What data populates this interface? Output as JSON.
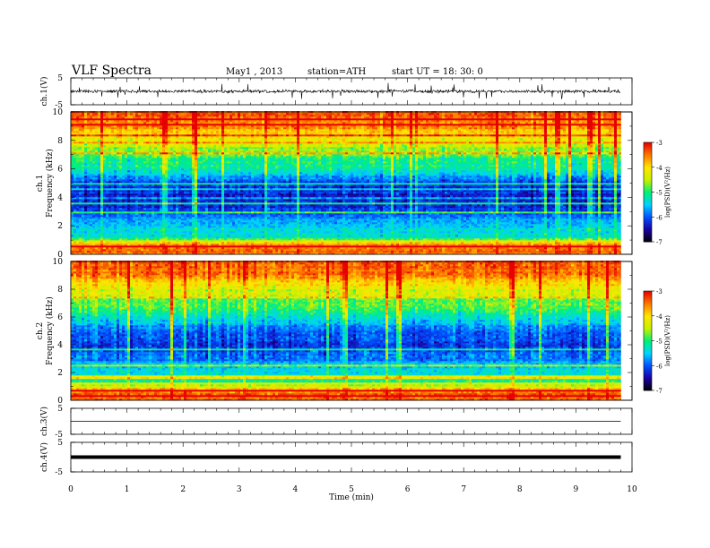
{
  "header": {
    "title": "VLF  Spectra",
    "date": "May1  , 2013",
    "station": "station=ATH",
    "start": "start  UT =   18: 30: 0"
  },
  "chart_data": [
    {
      "type": "line",
      "panel": "ch1-waveform",
      "ylabel": "ch.1(V)",
      "ylim": [
        -5,
        5
      ],
      "yticks": [
        "5",
        "-5"
      ],
      "x_range_min": [
        0,
        9.8
      ],
      "description_values": {
        "baseline": 0,
        "typical_amplitude": 1,
        "spike_amplitude": 3
      }
    },
    {
      "type": "heatmap",
      "panel": "ch1-spectrogram",
      "ylabel_top": "ch.1",
      "ylabel": "Frequency  (kHz)",
      "ylim": [
        0,
        10
      ],
      "yticks": [
        "0",
        "2",
        "4",
        "6",
        "8",
        "10"
      ],
      "x_range_min": [
        0,
        9.8
      ],
      "colorbar": {
        "label": "log(PSD)(V²/Hz)",
        "ticks": [
          "-3",
          "-4",
          "-5",
          "-6",
          "-7"
        ],
        "range": [
          -7,
          -3
        ]
      },
      "profile_khz_log_psd": [
        [
          0.0,
          -3.5
        ],
        [
          0.4,
          -3.4
        ],
        [
          0.8,
          -3.8
        ],
        [
          1.2,
          -5.3
        ],
        [
          2.0,
          -5.5
        ],
        [
          3.0,
          -6.0
        ],
        [
          4.0,
          -6.3
        ],
        [
          5.0,
          -6.1
        ],
        [
          6.0,
          -5.2
        ],
        [
          7.0,
          -4.8
        ],
        [
          8.0,
          -4.2
        ],
        [
          9.0,
          -3.6
        ],
        [
          10.0,
          -3.3
        ]
      ]
    },
    {
      "type": "heatmap",
      "panel": "ch2-spectrogram",
      "ylabel_top": "ch.2",
      "ylabel": "Frequency  (kHz)",
      "ylim": [
        0,
        10
      ],
      "yticks": [
        "0",
        "2",
        "4",
        "6",
        "8",
        "10"
      ],
      "x_range_min": [
        0,
        9.8
      ],
      "colorbar": {
        "label": "log(PSD)(V²/Hz)",
        "ticks": [
          "-3",
          "-4",
          "-5",
          "-6",
          "-7"
        ],
        "range": [
          -7,
          -3
        ]
      },
      "profile_khz_log_psd": [
        [
          0.0,
          -3.5
        ],
        [
          0.4,
          -3.4
        ],
        [
          0.8,
          -3.8
        ],
        [
          1.2,
          -5.0
        ],
        [
          2.0,
          -5.3
        ],
        [
          3.0,
          -5.8
        ],
        [
          4.0,
          -6.2
        ],
        [
          5.0,
          -6.0
        ],
        [
          6.0,
          -5.3
        ],
        [
          7.0,
          -4.8
        ],
        [
          8.0,
          -4.3
        ],
        [
          9.0,
          -3.6
        ],
        [
          10.0,
          -3.3
        ]
      ]
    },
    {
      "type": "line",
      "panel": "ch3-waveform",
      "ylabel": "ch.3(V)",
      "ylim": [
        -5,
        5
      ],
      "yticks": [
        "5",
        "-5"
      ],
      "x_range_min": [
        0,
        9.8
      ],
      "description_values": {
        "baseline": 0
      }
    },
    {
      "type": "line",
      "panel": "ch4-waveform",
      "ylabel": "ch.4(V)",
      "ylim": [
        -5,
        5
      ],
      "yticks": [
        "5",
        "-5"
      ],
      "x_range_min": [
        0,
        9.8
      ],
      "description_values": {
        "baseline": 0
      }
    }
  ],
  "xaxis": {
    "label": "Time  (min)",
    "xlim": [
      0,
      10
    ],
    "ticks": [
      "0",
      "1",
      "2",
      "3",
      "4",
      "5",
      "6",
      "7",
      "8",
      "9",
      "10"
    ]
  },
  "colors": {
    "colormap": [
      "#000000",
      "#1a00a0",
      "#0050ff",
      "#00d2ff",
      "#00f078",
      "#c8f000",
      "#ffe600",
      "#ff7800",
      "#e60000",
      "#ffffff"
    ],
    "axis": "#000000",
    "trace": "#000000"
  }
}
